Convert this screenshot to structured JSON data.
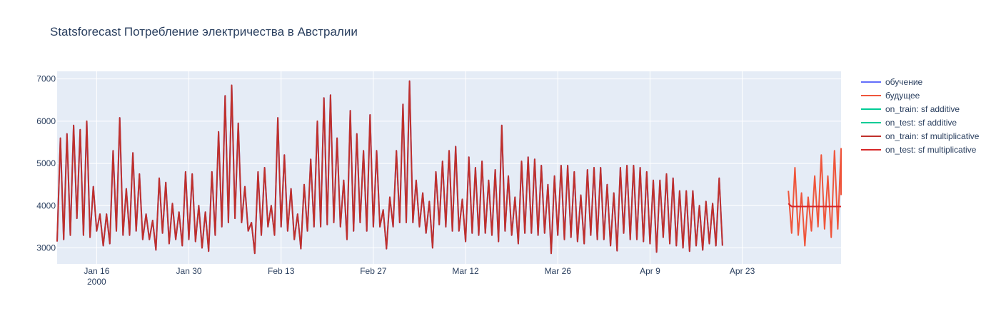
{
  "chart_data": {
    "type": "line",
    "title": "Statsforecast Потребление электричества в Австралии",
    "xlabel": "",
    "ylabel": "",
    "x_range": [
      "2000-01-10",
      "2000-05-08"
    ],
    "ylim": [
      2620,
      7180
    ],
    "grid": true,
    "legend_position": "right",
    "x_ticks": [
      {
        "date": "2000-01-16",
        "label": "Jan 16",
        "sublabel": "2000"
      },
      {
        "date": "2000-01-30",
        "label": "Jan 30",
        "sublabel": ""
      },
      {
        "date": "2000-02-13",
        "label": "Feb 13",
        "sublabel": ""
      },
      {
        "date": "2000-02-27",
        "label": "Feb 27",
        "sublabel": ""
      },
      {
        "date": "2000-03-12",
        "label": "Mar 12",
        "sublabel": ""
      },
      {
        "date": "2000-03-26",
        "label": "Mar 26",
        "sublabel": ""
      },
      {
        "date": "2000-04-09",
        "label": "Apr 9",
        "sublabel": ""
      },
      {
        "date": "2000-04-23",
        "label": "Apr 23",
        "sublabel": ""
      }
    ],
    "y_ticks": [
      3000,
      4000,
      5000,
      6000,
      7000
    ],
    "series": [
      {
        "name": "обучение",
        "color": "#636efa",
        "start": "2000-01-10",
        "step_hours": 12,
        "values": [
          3150,
          5600,
          3200,
          5700,
          3300,
          5900,
          3700,
          5800,
          3300,
          6000,
          3250,
          4450,
          3400,
          3800,
          3050,
          3800,
          3100,
          5300,
          3400,
          6080,
          3300,
          4400,
          3300,
          5250,
          3400,
          4750,
          3200,
          3800,
          3200,
          3650,
          2950,
          4650,
          3350,
          4550,
          3100,
          4050,
          3200,
          3850,
          3050,
          4800,
          3200,
          4750,
          3150,
          4000,
          3000,
          3850,
          2920,
          4800,
          3300,
          5750,
          3500,
          6600,
          3600,
          6850,
          3700,
          5950,
          3600,
          4450,
          3400,
          3600,
          2870,
          4800,
          3300,
          4900,
          3500,
          4000,
          3300,
          6080,
          3500,
          5200,
          3400,
          4400,
          3200,
          3800,
          2980,
          4500,
          3400,
          5100,
          3500,
          6000,
          3500,
          6550,
          3550,
          6620,
          3600,
          5600,
          3500,
          4600,
          3200,
          6250,
          3400,
          5700,
          3600,
          5300,
          3400,
          6150,
          3500,
          5300,
          3500,
          3900,
          2980,
          4200,
          3500,
          5300,
          3600,
          6400,
          3600,
          6950,
          3600,
          4600,
          3500,
          4300,
          3350,
          4100,
          3000,
          4800,
          3550,
          5050,
          3500,
          5300,
          3400,
          5400,
          3400,
          4150,
          3150,
          5150,
          3350,
          4900,
          3300,
          5050,
          3350,
          4600,
          3300,
          4850,
          3150,
          5900,
          3400,
          4700,
          3300,
          4200,
          3100,
          5050,
          3350,
          5150,
          3350,
          5100,
          3300,
          4950,
          3350,
          4500,
          2870,
          4700,
          3300,
          4950,
          3200,
          4950,
          3250,
          4800,
          3150,
          4250,
          3100,
          4850,
          3300,
          4900,
          3200,
          4900,
          3200,
          4500,
          3050,
          4300,
          2930,
          4900,
          3350,
          4950,
          3200,
          4950,
          3200,
          4900,
          3150,
          4800,
          3100,
          4600,
          2900,
          4600,
          3250,
          4750,
          3100,
          4650,
          3050,
          4350,
          3000,
          4350,
          2920,
          4350,
          3050,
          4000,
          2950,
          4100,
          3100,
          4050,
          3050,
          4650,
          3050
        ]
      },
      {
        "name": "будущее",
        "color": "#ef553b",
        "start": "2000-04-30",
        "step_hours": 12,
        "values": [
          4350,
          3350,
          4900,
          3300,
          4300,
          3050,
          4200,
          3400,
          4700,
          3500,
          5200,
          3450,
          4700,
          3250,
          5300,
          3450,
          5350,
          4250
        ]
      },
      {
        "name": "on_train: sf additive",
        "color": "#00cc96",
        "start": "2000-01-10",
        "step_hours": 12,
        "values": []
      },
      {
        "name": "on_test: sf additive",
        "color": "#00cc96",
        "start": "2000-04-30",
        "step_hours": 12,
        "values": []
      },
      {
        "name": "on_train: sf multiplicative",
        "color": "#c0302b",
        "start": "2000-01-10",
        "step_hours": 12,
        "values": "same-as-обучение"
      },
      {
        "name": "on_test: sf multiplicative",
        "color": "#d62728",
        "start": "2000-04-30",
        "step_hours": 12,
        "values": [
          4050,
          3980,
          3980,
          3980,
          3980,
          3980,
          3980,
          3980,
          3980,
          3980,
          3980,
          3980,
          3980,
          3980,
          3980,
          3980,
          3980,
          3980
        ]
      }
    ]
  },
  "colors": {
    "plot_bg": "#e5ecf6",
    "grid": "#ffffff",
    "text": "#2a3f5f"
  }
}
